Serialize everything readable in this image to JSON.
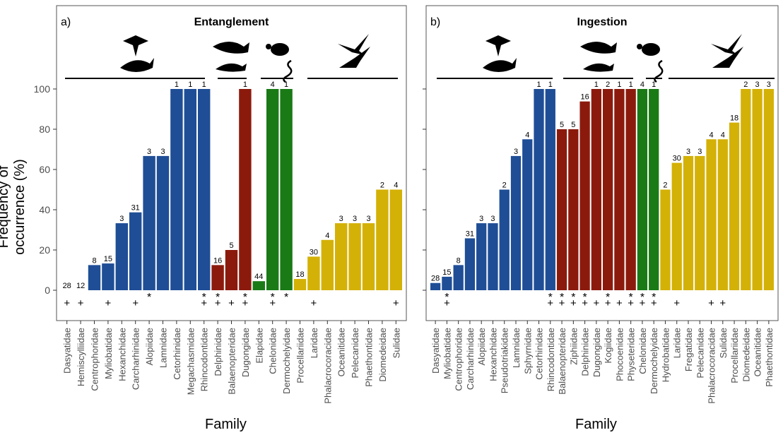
{
  "y_axis_label": "Frequency of occurrence (%)",
  "x_axis_label": "Family",
  "colors": {
    "elasmobranchs": "#1f4e96",
    "marine_mammals": "#8b1a0d",
    "reptiles": "#1a7a16",
    "seabirds": "#d4b106",
    "panel_border": "#555555",
    "text": "#333333"
  },
  "group_icons": [
    "ray-shark-silhouette-icon",
    "whale-dolphin-silhouette-icon",
    "turtle-snake-silhouette-icon",
    "seabird-silhouette-icon"
  ],
  "chart_data": [
    {
      "type": "bar",
      "panel": "a)",
      "title": "Entanglement",
      "ylim": [
        0,
        100
      ],
      "yticks": [
        0,
        20,
        40,
        60,
        80,
        100
      ],
      "categories": [
        "Dasyatidae",
        "Hemiscylliidae",
        "Centrophoridae",
        "Myliobatidae",
        "Hexanchidae",
        "Carcharhinidae",
        "Alopiidae",
        "Lamnidae",
        "Cetorhinidae",
        "Megachasmidae",
        "Rhincodontidae",
        "Delphinidae",
        "Balaenopteridae",
        "Dugongidae",
        "Elapidae",
        "Chelonidae",
        "Dermochelyidae",
        "Procellariidae",
        "Laridae",
        "Phalacrocoracidae",
        "Oceanitidae",
        "Pelecanidae",
        "Phaethontidae",
        "Diomedeidae",
        "Sulidae"
      ],
      "values": [
        0,
        0,
        12.5,
        13.3,
        33.3,
        38.7,
        66.7,
        66.7,
        100,
        100,
        100,
        12.5,
        20,
        100,
        4.5,
        100,
        100,
        5.6,
        16.7,
        25,
        33.3,
        33.3,
        33.3,
        50,
        50
      ],
      "n_labels": [
        "28",
        "12",
        "8",
        "15",
        "3",
        "31",
        "3",
        "3",
        "1",
        "1",
        "1",
        "16",
        "5",
        "1",
        "44",
        "4",
        "1",
        "18",
        "30",
        "4",
        "3",
        "3",
        "3",
        "2",
        "4"
      ],
      "groups": [
        "elasmobranchs",
        "elasmobranchs",
        "elasmobranchs",
        "elasmobranchs",
        "elasmobranchs",
        "elasmobranchs",
        "elasmobranchs",
        "elasmobranchs",
        "elasmobranchs",
        "elasmobranchs",
        "elasmobranchs",
        "marine_mammals",
        "marine_mammals",
        "marine_mammals",
        "reptiles",
        "reptiles",
        "reptiles",
        "seabirds",
        "seabirds",
        "seabirds",
        "seabirds",
        "seabirds",
        "seabirds",
        "seabirds",
        "seabirds"
      ],
      "asterisk": [
        "",
        "",
        "",
        "",
        "",
        "",
        "*",
        "",
        "",
        "",
        "*",
        "*",
        "",
        "*",
        "",
        "*",
        "*",
        "",
        "",
        "",
        "",
        "",
        "",
        "",
        ""
      ],
      "plus": [
        "+",
        "+",
        "",
        "+",
        "",
        "+",
        "",
        "",
        "",
        "",
        "+",
        "+",
        "+",
        "+",
        "",
        "+",
        "",
        "",
        "+",
        "",
        "",
        "",
        "",
        "",
        "+"
      ]
    },
    {
      "type": "bar",
      "panel": "b)",
      "title": "Ingestion",
      "ylim": [
        0,
        100
      ],
      "yticks": [
        0,
        20,
        40,
        60,
        80,
        100
      ],
      "categories": [
        "Dasyatidae",
        "Myliobatidae",
        "Centrophoridae",
        "Carcharhinidae",
        "Alopiidae",
        "Hexanchidae",
        "Pseudotriakidae",
        "Lamnidae",
        "Sphyrnidae",
        "Cetorhinidae",
        "Rhincodontidae",
        "Balaenopteridae",
        "Ziphiidae",
        "Delphinidae",
        "Dugongidae",
        "Kogiidae",
        "Phocoenidae",
        "Physeteridae",
        "Chelonidae",
        "Dermochelyidae",
        "Hydrobatidae",
        "Laridae",
        "Fregatidae",
        "Pelecanidae",
        "Phalacrocoracidae",
        "Sulidae",
        "Procellariidae",
        "Diomedeidae",
        "Oceanitidae",
        "Phaethontidae"
      ],
      "values": [
        3.6,
        6.7,
        12.5,
        25.8,
        33.3,
        33.3,
        50,
        66.7,
        75,
        100,
        100,
        80,
        80,
        93.8,
        100,
        100,
        100,
        100,
        100,
        100,
        50,
        63.3,
        66.7,
        66.7,
        75,
        75,
        83.3,
        100,
        100,
        100
      ],
      "n_labels": [
        "28",
        "15",
        "8",
        "31",
        "3",
        "3",
        "2",
        "3",
        "4",
        "1",
        "1",
        "5",
        "5",
        "16",
        "1",
        "2",
        "1",
        "1",
        "4",
        "1",
        "2",
        "30",
        "3",
        "3",
        "4",
        "4",
        "18",
        "2",
        "3",
        "3"
      ],
      "groups": [
        "elasmobranchs",
        "elasmobranchs",
        "elasmobranchs",
        "elasmobranchs",
        "elasmobranchs",
        "elasmobranchs",
        "elasmobranchs",
        "elasmobranchs",
        "elasmobranchs",
        "elasmobranchs",
        "elasmobranchs",
        "marine_mammals",
        "marine_mammals",
        "marine_mammals",
        "marine_mammals",
        "marine_mammals",
        "marine_mammals",
        "marine_mammals",
        "reptiles",
        "reptiles",
        "seabirds",
        "seabirds",
        "seabirds",
        "seabirds",
        "seabirds",
        "seabirds",
        "seabirds",
        "seabirds",
        "seabirds",
        "seabirds"
      ],
      "asterisk": [
        "",
        "*",
        "",
        "",
        "",
        "",
        "",
        "",
        "",
        "",
        "*",
        "*",
        "*",
        "*",
        "",
        "*",
        "",
        "*",
        "*",
        "*",
        "",
        "",
        "",
        "",
        "",
        "",
        "",
        "",
        "",
        ""
      ],
      "plus": [
        "",
        "+",
        "",
        "",
        "",
        "",
        "",
        "",
        "",
        "",
        "+",
        "+",
        "+",
        "+",
        "+",
        "+",
        "+",
        "+",
        "+",
        "+",
        "",
        "+",
        "",
        "",
        "+",
        "+",
        "",
        "",
        "",
        ""
      ]
    }
  ]
}
